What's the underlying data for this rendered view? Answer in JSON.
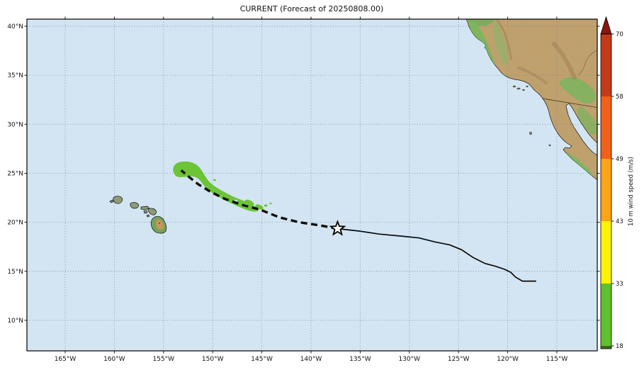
{
  "figure": {
    "title": "CURRENT (Forecast of 20250808.00)"
  },
  "map": {
    "projection": "PlateCarree",
    "ocean_color": "#d3e5f3",
    "land_color": "#c2a26d",
    "lat_ticks": [
      {
        "label": "40°N",
        "lat": 40
      },
      {
        "label": "35°N",
        "lat": 35
      },
      {
        "label": "30°N",
        "lat": 30
      },
      {
        "label": "25°N",
        "lat": 25
      },
      {
        "label": "20°N",
        "lat": 20
      },
      {
        "label": "15°N",
        "lat": 15
      },
      {
        "label": "10°N",
        "lat": 10
      }
    ],
    "lon_ticks": [
      {
        "label": "165°W",
        "lon": 165
      },
      {
        "label": "160°W",
        "lon": 160
      },
      {
        "label": "155°W",
        "lon": 155
      },
      {
        "label": "150°W",
        "lon": 150
      },
      {
        "label": "145°W",
        "lon": 145
      },
      {
        "label": "140°W",
        "lon": 140
      },
      {
        "label": "135°W",
        "lon": 135
      },
      {
        "label": "130°W",
        "lon": 130
      },
      {
        "label": "125°W",
        "lon": 125
      },
      {
        "label": "120°W",
        "lon": 120
      },
      {
        "label": "115°W",
        "lon": 115
      }
    ]
  },
  "colorbar": {
    "label": "10 m wind speed (m/s)",
    "ticks": [
      {
        "label": "18"
      },
      {
        "label": "33"
      },
      {
        "label": "43"
      },
      {
        "label": "49"
      },
      {
        "label": "58"
      },
      {
        "label": "70"
      }
    ],
    "segments": [
      {
        "range": "<18",
        "color": "#3f661f"
      },
      {
        "range": "18-33",
        "color": "#5ec12d"
      },
      {
        "range": "33-43",
        "color": "#fdf303"
      },
      {
        "range": "43-49",
        "color": "#ffa317"
      },
      {
        "range": "49-58",
        "color": "#f2601a"
      },
      {
        "range": "58-70",
        "color": "#c43a18"
      }
    ],
    "over_arrow_color": "#8c150c"
  },
  "storm": {
    "current_position": {
      "lon_w": 137.3,
      "lat": 19.35
    },
    "observed_track": [
      [
        117.1,
        14.0
      ],
      [
        118.5,
        14.0
      ],
      [
        119.2,
        14.4
      ],
      [
        119.7,
        14.9
      ],
      [
        120.3,
        15.2
      ],
      [
        121.2,
        15.5
      ],
      [
        122.3,
        15.8
      ],
      [
        123.5,
        16.4
      ],
      [
        124.7,
        17.2
      ],
      [
        125.9,
        17.7
      ],
      [
        127.4,
        18.0
      ],
      [
        129.0,
        18.4
      ],
      [
        130.9,
        18.6
      ],
      [
        133.1,
        18.8
      ],
      [
        135.1,
        19.1
      ],
      [
        137.3,
        19.35
      ]
    ],
    "forecast_track": [
      [
        137.3,
        19.35
      ],
      [
        139.2,
        19.7
      ],
      [
        141.2,
        20.0
      ],
      [
        143.2,
        20.5
      ],
      [
        145.2,
        21.3
      ],
      [
        147.1,
        21.8
      ],
      [
        148.8,
        22.4
      ],
      [
        150.2,
        23.1
      ],
      [
        151.5,
        23.9
      ],
      [
        152.5,
        24.7
      ],
      [
        153.2,
        25.3
      ]
    ],
    "swath_color": "#6cc437"
  }
}
